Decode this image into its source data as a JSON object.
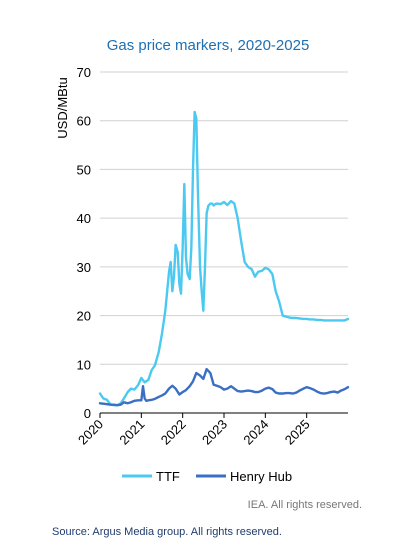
{
  "chart_data": {
    "type": "line",
    "title": "Gas price markers, 2020-2025",
    "ylabel": "USD/MBtu",
    "xlabel": "",
    "ylim": [
      0,
      70
    ],
    "xlim": [
      2020,
      2026
    ],
    "yticks": [
      0,
      10,
      20,
      30,
      40,
      50,
      60,
      70
    ],
    "xtick_values": [
      2020,
      2021,
      2022,
      2023,
      2024,
      2025
    ],
    "xtick_labels": [
      "2020",
      "2021",
      "2022",
      "2023",
      "2024",
      "2025"
    ],
    "grid": "horizontal",
    "legend": "bottom",
    "series": [
      {
        "name": "TTF",
        "color": "#4cc9f0",
        "x": [
          2020.0,
          2020.08,
          2020.17,
          2020.25,
          2020.33,
          2020.42,
          2020.5,
          2020.58,
          2020.67,
          2020.75,
          2020.83,
          2020.92,
          2021.0,
          2021.08,
          2021.17,
          2021.25,
          2021.33,
          2021.42,
          2021.5,
          2021.58,
          2021.67,
          2021.71,
          2021.75,
          2021.79,
          2021.83,
          2021.88,
          2021.92,
          2021.96,
          2022.0,
          2022.04,
          2022.08,
          2022.12,
          2022.17,
          2022.21,
          2022.25,
          2022.29,
          2022.33,
          2022.37,
          2022.42,
          2022.46,
          2022.5,
          2022.54,
          2022.58,
          2022.62,
          2022.67,
          2022.71,
          2022.75,
          2022.79,
          2022.83,
          2022.92,
          2023.0,
          2023.08,
          2023.17,
          2023.25,
          2023.33,
          2023.42,
          2023.5,
          2023.58,
          2023.67,
          2023.75,
          2023.83,
          2023.92,
          2024.0,
          2024.08,
          2024.17,
          2024.25,
          2024.33,
          2024.42,
          2024.5,
          2024.58,
          2024.67,
          2024.75,
          2024.83,
          2024.92,
          2025.0,
          2025.08,
          2025.17,
          2025.25,
          2025.33,
          2025.42,
          2025.5,
          2025.58,
          2025.67,
          2025.75,
          2025.83,
          2025.92,
          2026.0
        ],
        "values": [
          4.0,
          3.0,
          2.7,
          1.8,
          1.6,
          1.6,
          2.0,
          3.0,
          4.3,
          5.0,
          4.8,
          5.7,
          7.2,
          6.3,
          6.8,
          8.8,
          9.8,
          12.5,
          16.3,
          21.0,
          29.0,
          31.0,
          25.0,
          28.0,
          34.5,
          33.0,
          26.5,
          24.5,
          34.0,
          47.0,
          32.0,
          28.5,
          27.5,
          34.0,
          50.0,
          61.8,
          60.5,
          45.0,
          30.0,
          25.0,
          21.0,
          30.0,
          41.0,
          42.5,
          43.0,
          43.0,
          42.6,
          42.9,
          43.0,
          42.9,
          43.3,
          42.7,
          43.5,
          43.0,
          40.0,
          35.0,
          31.0,
          30.0,
          29.5,
          28.0,
          29.0,
          29.2,
          29.8,
          29.5,
          28.5,
          25.0,
          23.0,
          20.0,
          19.8,
          19.6,
          19.5,
          19.5,
          19.4,
          19.3,
          19.3,
          19.2,
          19.2,
          19.1,
          19.1,
          19.0,
          19.0,
          19.0,
          19.0,
          19.0,
          19.0,
          19.0,
          19.3
        ]
      },
      {
        "name": "Henry Hub",
        "color": "#3a6fc4",
        "x": [
          2020.0,
          2020.08,
          2020.17,
          2020.25,
          2020.33,
          2020.42,
          2020.5,
          2020.58,
          2020.67,
          2020.75,
          2020.83,
          2020.92,
          2021.0,
          2021.04,
          2021.08,
          2021.12,
          2021.17,
          2021.25,
          2021.33,
          2021.42,
          2021.5,
          2021.58,
          2021.67,
          2021.75,
          2021.83,
          2021.92,
          2022.0,
          2022.08,
          2022.17,
          2022.25,
          2022.33,
          2022.42,
          2022.5,
          2022.58,
          2022.67,
          2022.75,
          2022.83,
          2022.92,
          2023.0,
          2023.08,
          2023.17,
          2023.25,
          2023.33,
          2023.42,
          2023.5,
          2023.58,
          2023.67,
          2023.75,
          2023.83,
          2023.92,
          2024.0,
          2024.08,
          2024.17,
          2024.25,
          2024.33,
          2024.42,
          2024.5,
          2024.58,
          2024.67,
          2024.75,
          2024.83,
          2024.92,
          2025.0,
          2025.08,
          2025.17,
          2025.25,
          2025.33,
          2025.42,
          2025.5,
          2025.58,
          2025.67,
          2025.75,
          2025.83,
          2025.92,
          2026.0
        ],
        "values": [
          2.0,
          1.9,
          1.8,
          1.7,
          1.7,
          1.6,
          1.7,
          2.2,
          2.0,
          2.2,
          2.5,
          2.6,
          2.6,
          5.5,
          3.0,
          2.5,
          2.6,
          2.7,
          2.9,
          3.3,
          3.6,
          4.0,
          5.0,
          5.6,
          5.0,
          3.8,
          4.3,
          4.7,
          5.5,
          6.5,
          8.2,
          7.7,
          7.0,
          9.0,
          8.2,
          5.8,
          5.6,
          5.3,
          4.8,
          5.0,
          5.5,
          5.0,
          4.5,
          4.4,
          4.5,
          4.6,
          4.5,
          4.3,
          4.3,
          4.6,
          5.0,
          5.2,
          4.9,
          4.2,
          4.0,
          4.0,
          4.1,
          4.1,
          4.0,
          4.2,
          4.6,
          5.0,
          5.3,
          5.1,
          4.8,
          4.4,
          4.1,
          4.0,
          4.1,
          4.3,
          4.4,
          4.2,
          4.6,
          4.9,
          5.3
        ]
      }
    ]
  },
  "credit": "IEA. All rights reserved.",
  "source": "Source: Argus Media group. All rights reserved."
}
